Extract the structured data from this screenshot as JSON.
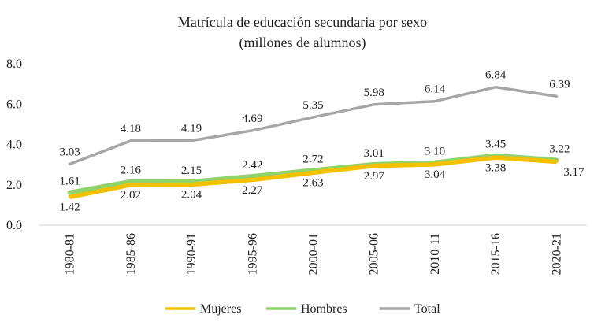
{
  "chart_data": {
    "type": "line",
    "title": "Matrícula  de educación secundaria por sexo",
    "subtitle": "(millones de alumnos)",
    "xlabel": "",
    "ylabel": "",
    "categories": [
      "1980-81",
      "1985-86",
      "1990-91",
      "1995-96",
      "2000-01",
      "2005-06",
      "2010-11",
      "2015-16",
      "2020-21"
    ],
    "y_ticks": [
      "8.0",
      "6.0",
      "4.0",
      "2.0",
      "0.0"
    ],
    "ylim": [
      0,
      8
    ],
    "grid": false,
    "legend_position": "bottom",
    "series": [
      {
        "name": "Mujeres",
        "color": "#f2c200",
        "values": [
          1.42,
          2.02,
          2.04,
          2.27,
          2.63,
          2.97,
          3.04,
          3.38,
          3.17
        ],
        "labels": [
          "1.42",
          "2.02",
          "2.04",
          "2.27",
          "2.63",
          "2.97",
          "3.04",
          "3.38",
          "3.17"
        ]
      },
      {
        "name": "Hombres",
        "color": "#8ed46b",
        "values": [
          1.61,
          2.16,
          2.15,
          2.42,
          2.72,
          3.01,
          3.1,
          3.45,
          3.22
        ],
        "labels": [
          "1.61",
          "2.16",
          "2.15",
          "2.42",
          "2.72",
          "3.01",
          "3.10",
          "3.45",
          "3.22"
        ]
      },
      {
        "name": "Total",
        "color": "#a6a6a6",
        "values": [
          3.03,
          4.18,
          4.19,
          4.69,
          5.35,
          5.98,
          6.14,
          6.84,
          6.39
        ],
        "labels": [
          "3.03",
          "4.18",
          "4.19",
          "4.69",
          "5.35",
          "5.98",
          "6.14",
          "6.84",
          "6.39"
        ]
      }
    ]
  }
}
